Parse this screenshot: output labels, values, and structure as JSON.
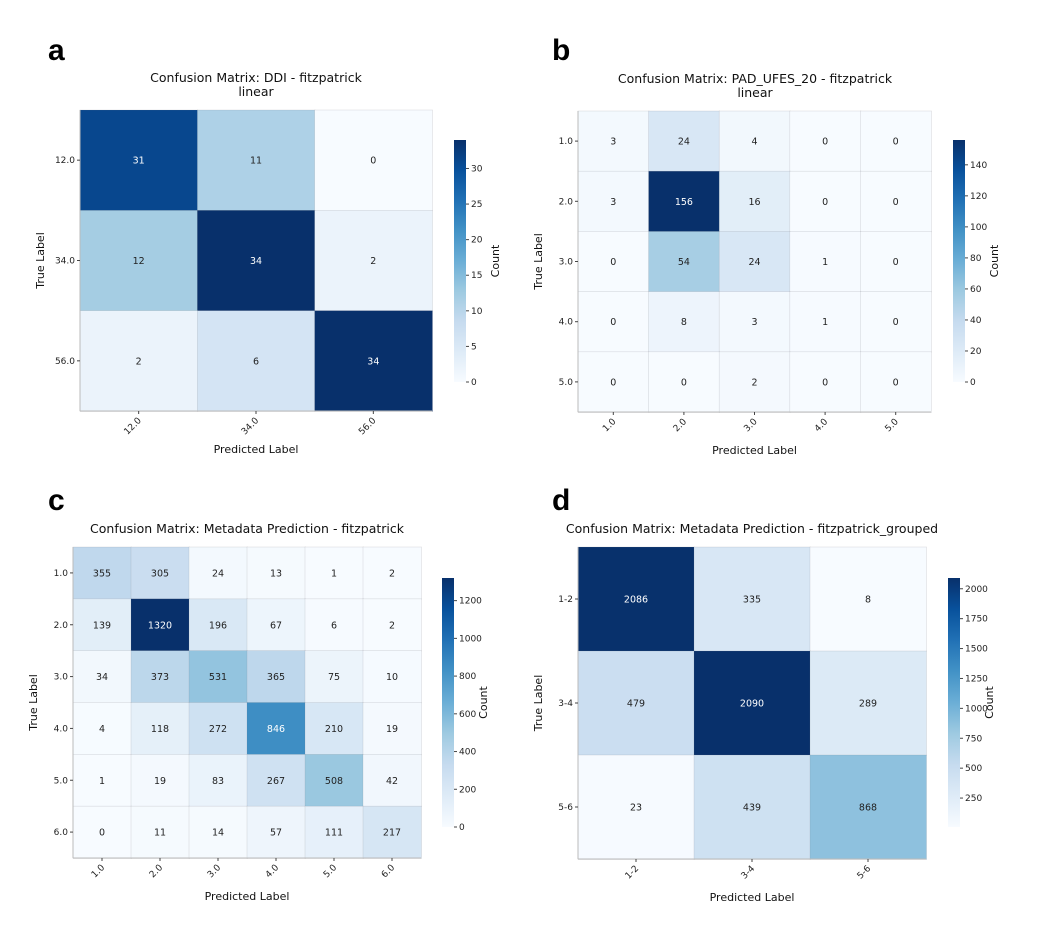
{
  "chart_data": [
    {
      "panel_letter": "a",
      "type": "heatmap",
      "title": [
        "Confusion Matrix: DDI - fitzpatrick",
        "linear"
      ],
      "xlabel": "Predicted Label",
      "ylabel": "True Label",
      "x_categories": [
        "12.0",
        "34.0",
        "56.0"
      ],
      "y_categories": [
        "12.0",
        "34.0",
        "56.0"
      ],
      "values": [
        [
          31,
          11,
          0
        ],
        [
          12,
          34,
          2
        ],
        [
          2,
          6,
          34
        ]
      ],
      "colormap": "Blues",
      "colorbar": {
        "label": "Count",
        "vmin": 0,
        "vmax": 34,
        "ticks": [
          "0",
          "5",
          "10",
          "15",
          "20",
          "25",
          "30"
        ]
      }
    },
    {
      "panel_letter": "b",
      "type": "heatmap",
      "title": [
        "Confusion Matrix: PAD_UFES_20 - fitzpatrick",
        "linear"
      ],
      "xlabel": "Predicted Label",
      "ylabel": "True Label",
      "x_categories": [
        "1.0",
        "2.0",
        "3.0",
        "4.0",
        "5.0"
      ],
      "y_categories": [
        "1.0",
        "2.0",
        "3.0",
        "4.0",
        "5.0"
      ],
      "values": [
        [
          3,
          24,
          4,
          0,
          0
        ],
        [
          3,
          156,
          16,
          0,
          0
        ],
        [
          0,
          54,
          24,
          1,
          0
        ],
        [
          0,
          8,
          3,
          1,
          0
        ],
        [
          0,
          0,
          2,
          0,
          0
        ]
      ],
      "colormap": "Blues",
      "colorbar": {
        "label": "Count",
        "vmin": 0,
        "vmax": 156,
        "ticks": [
          "0",
          "20",
          "40",
          "60",
          "80",
          "100",
          "120",
          "140"
        ]
      }
    },
    {
      "panel_letter": "c",
      "type": "heatmap",
      "title": [
        "Confusion Matrix: Metadata Prediction - fitzpatrick"
      ],
      "xlabel": "Predicted Label",
      "ylabel": "True Label",
      "x_categories": [
        "1.0",
        "2.0",
        "3.0",
        "4.0",
        "5.0",
        "6.0"
      ],
      "y_categories": [
        "1.0",
        "2.0",
        "3.0",
        "4.0",
        "5.0",
        "6.0"
      ],
      "values": [
        [
          355,
          305,
          24,
          13,
          1,
          2
        ],
        [
          139,
          1320,
          196,
          67,
          6,
          2
        ],
        [
          34,
          373,
          531,
          365,
          75,
          10
        ],
        [
          4,
          118,
          272,
          846,
          210,
          19
        ],
        [
          1,
          19,
          83,
          267,
          508,
          42
        ],
        [
          0,
          11,
          14,
          57,
          111,
          217
        ]
      ],
      "colormap": "Blues",
      "colorbar": {
        "label": "Count",
        "vmin": 0,
        "vmax": 1320,
        "ticks": [
          "0",
          "200",
          "400",
          "600",
          "800",
          "1000",
          "1200"
        ]
      }
    },
    {
      "panel_letter": "d",
      "type": "heatmap",
      "title": [
        "Confusion Matrix: Metadata Prediction - fitzpatrick_grouped"
      ],
      "xlabel": "Predicted Label",
      "ylabel": "True Label",
      "x_categories": [
        "1-2",
        "3-4",
        "5-6"
      ],
      "y_categories": [
        "1-2",
        "3-4",
        "5-6"
      ],
      "values": [
        [
          2086,
          335,
          8
        ],
        [
          479,
          2090,
          289
        ],
        [
          23,
          439,
          868
        ]
      ],
      "colormap": "Blues",
      "colorbar": {
        "label": "Count",
        "vmin": 8,
        "vmax": 2090,
        "ticks": [
          "250",
          "500",
          "750",
          "1000",
          "1250",
          "1500",
          "1750",
          "2000"
        ]
      }
    }
  ]
}
